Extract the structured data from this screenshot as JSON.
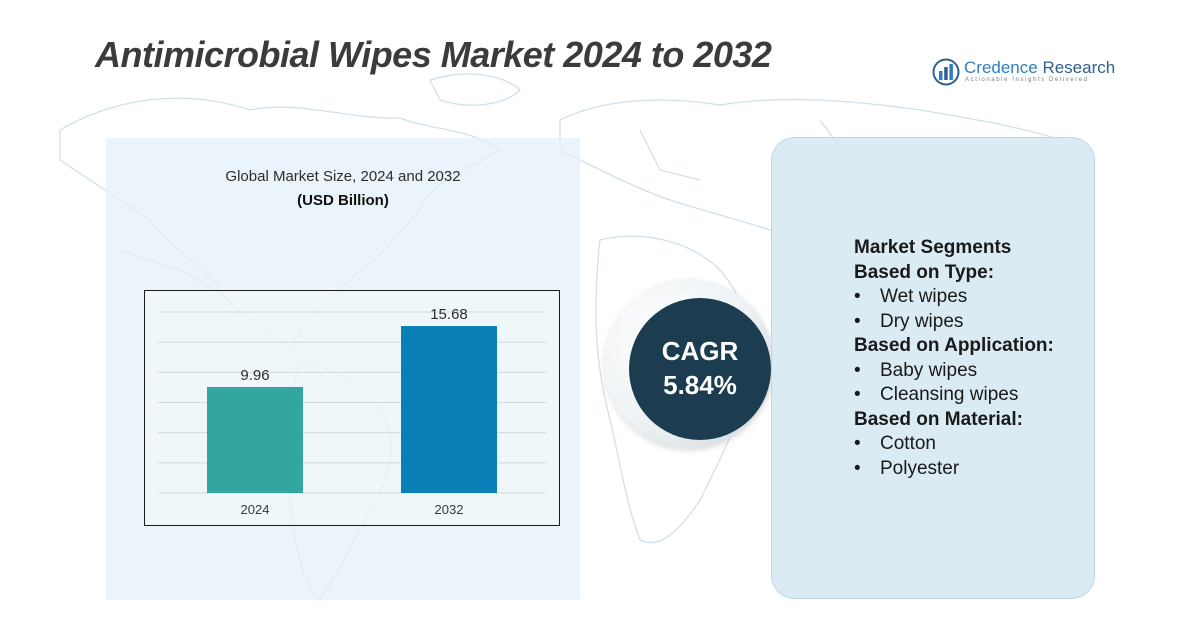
{
  "header": {
    "title": "Antimicrobial Wipes Market 2024 to 2032"
  },
  "logo": {
    "name_prefix": "Credence",
    "name_suffix": "Research",
    "tagline": "Actionable Insights Delivered",
    "icon": "bar-chart-circle-icon",
    "color": "#2f7fc0"
  },
  "chart_panel": {
    "title": "Global Market Size, 2024 and 2032",
    "unit": "(USD Billion)"
  },
  "chart_data": {
    "type": "bar",
    "categories": [
      "2024",
      "2032"
    ],
    "values": [
      9.96,
      15.68
    ],
    "value_labels": [
      "9.96",
      "15.68"
    ],
    "colors": [
      "#33a6a0",
      "#0a7fb6"
    ],
    "ylim": [
      0,
      17
    ],
    "grid": true,
    "legend": "none"
  },
  "cagr": {
    "label": "CAGR",
    "value": "5.84%",
    "color": "#1c3d4f"
  },
  "segments": {
    "heading": "Market Segments",
    "bullet": "•",
    "groups": [
      {
        "title": "Based on Type:",
        "items": [
          "Wet wipes",
          "Dry wipes"
        ]
      },
      {
        "title": "Based on Application:",
        "items": [
          "Baby wipes",
          "Cleansing wipes"
        ]
      },
      {
        "title": "Based on Material:",
        "items": [
          "Cotton",
          "Polyester"
        ]
      }
    ]
  }
}
